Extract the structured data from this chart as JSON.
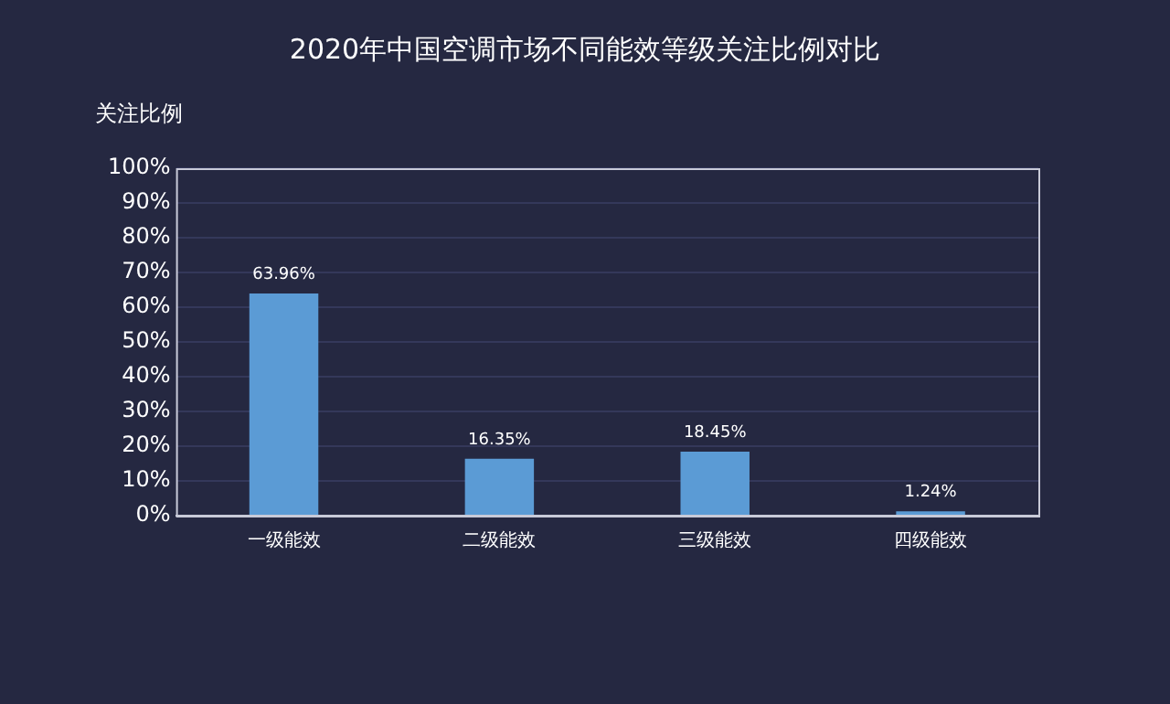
{
  "chart_data": {
    "type": "bar",
    "title": "2020年中国空调市场不同能效等级关注比例对比",
    "ylabel": "关注比例",
    "categories": [
      "一级能效",
      "二级能效",
      "三级能效",
      "四级能效"
    ],
    "values": [
      63.96,
      16.35,
      18.45,
      1.24
    ],
    "color": "#5b9bd5",
    "value_labels": [
      "63.96%",
      "16.35%",
      "18.45%",
      "1.24%"
    ],
    "ylim": [
      0,
      100
    ],
    "yticks": [
      {
        "value": 0,
        "label": "0%"
      },
      {
        "value": 10,
        "label": "10%"
      },
      {
        "value": 20,
        "label": "20%"
      },
      {
        "value": 30,
        "label": "30%"
      },
      {
        "value": 40,
        "label": "40%"
      },
      {
        "value": 50,
        "label": "50%"
      },
      {
        "value": 60,
        "label": "60%"
      },
      {
        "value": 70,
        "label": "70%"
      },
      {
        "value": 80,
        "label": "80%"
      },
      {
        "value": 90,
        "label": "90%"
      },
      {
        "value": 100,
        "label": "100%"
      }
    ],
    "grid": "y"
  }
}
